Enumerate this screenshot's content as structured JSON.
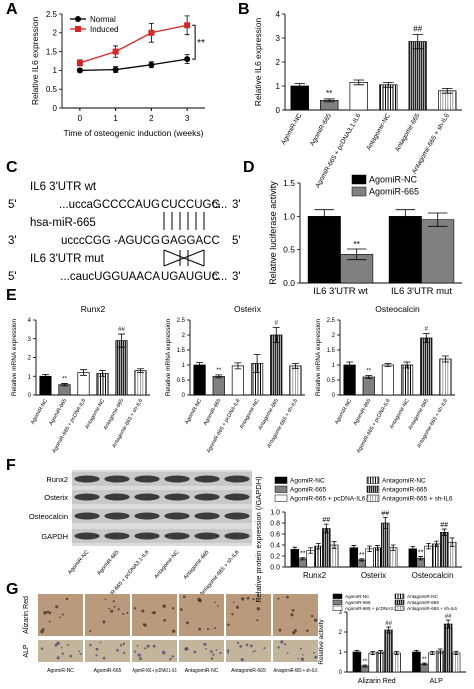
{
  "panel_labels": [
    "A",
    "B",
    "C",
    "D",
    "E",
    "F",
    "G"
  ],
  "chart_data": [
    {
      "type": "line",
      "x_label": "Time of osteogenic induction (weeks)",
      "y_label": "Relative IL6 expression",
      "x": [
        0,
        1,
        2,
        3
      ],
      "xlim": [
        -0.5,
        3.5
      ],
      "xticks": [
        0,
        1,
        2,
        3
      ],
      "ylim": [
        0,
        2.5
      ],
      "yticks": [
        0,
        0.5,
        1,
        1.5,
        2,
        2.5
      ],
      "legend": "top-left",
      "annotation": "**",
      "series": [
        {
          "name": "Normal",
          "color": "#000000",
          "marker": "circle",
          "values": [
            1.0,
            1.02,
            1.15,
            1.3
          ],
          "errors": [
            0.05,
            0.08,
            0.08,
            0.12
          ]
        },
        {
          "name": "Induced",
          "color": "#d62728",
          "marker": "square",
          "values": [
            1.2,
            1.5,
            2.0,
            2.2
          ],
          "errors": [
            0.08,
            0.15,
            0.25,
            0.25
          ]
        }
      ]
    },
    {
      "type": "bar",
      "y_label": "Relative IL6 expression",
      "categories": [
        "AgomiR-NC",
        "AgomiR-665",
        "AgomiR-665 + pcDNA3.1-IL6",
        "Antagomir-NC",
        "Antagomir-665",
        "Antagomir-665 + sh-IL6"
      ],
      "values": [
        1.0,
        0.4,
        1.15,
        1.05,
        2.85,
        0.8
      ],
      "errors": [
        0.1,
        0.06,
        0.1,
        0.1,
        0.3,
        0.1
      ],
      "significance": [
        null,
        "**",
        null,
        null,
        "##",
        null
      ],
      "fills": [
        "#000000",
        "#808080",
        "#ffffff",
        "stripes",
        "dense-stripes",
        "light-stripes"
      ],
      "ylim": [
        0,
        4
      ],
      "yticks": [
        0,
        1,
        2,
        3,
        4
      ]
    },
    {
      "type": "grouped_bar",
      "y_label": "Relative luciferase activity",
      "categories": [
        "IL6 3'UTR wt",
        "IL6 3'UTR mut"
      ],
      "legend": "top-right",
      "ylim": [
        0,
        1.5
      ],
      "yticks": [
        {
          "value": 0,
          "label": "0.0"
        },
        0.5,
        {
          "value": 1,
          "label": "1.0"
        },
        1.5
      ],
      "series": [
        {
          "name": "AgomiR-NC",
          "color": "#000000",
          "values": [
            1.0,
            1.0
          ],
          "errors": [
            0.1,
            0.1
          ],
          "significance": [
            null,
            null
          ]
        },
        {
          "name": "AgomiR-665",
          "color": "#808080",
          "values": [
            0.43,
            0.95
          ],
          "errors": [
            0.08,
            0.1
          ],
          "significance": [
            "**",
            null
          ]
        }
      ]
    },
    {
      "type": "bar",
      "title": "Runx2",
      "y_label": "Relative mRNA expression",
      "categories": [
        "AgomiR-NC",
        "AgomiR-665",
        "AgomiR-665 + pcDNA-IL6",
        "Antagomir-NC",
        "Antagomir-665",
        "Antagomir-665 + sh-IL6"
      ],
      "values": [
        1.0,
        0.55,
        1.2,
        1.15,
        2.9,
        1.3
      ],
      "errors": [
        0.1,
        0.06,
        0.15,
        0.15,
        0.35,
        0.1
      ],
      "significance": [
        null,
        "**",
        null,
        null,
        "##",
        null
      ],
      "fills": [
        "#000000",
        "#808080",
        "#ffffff",
        "stripes",
        "dense-stripes",
        "light-stripes"
      ],
      "ylim": [
        0,
        4
      ],
      "yticks": [
        0,
        1,
        2,
        3,
        4
      ]
    },
    {
      "type": "bar",
      "title": "Osterix",
      "y_label": "Relative mRNA expression",
      "categories": [
        "AgomiR-NC",
        "AgomiR-665",
        "AgomiR-665 + pcDNA-IL6",
        "Antagomir-NC",
        "Antagomir-665",
        "Antagomir-665 + sh-IL6"
      ],
      "values": [
        1.0,
        0.62,
        0.97,
        1.05,
        2.0,
        0.97
      ],
      "errors": [
        0.08,
        0.05,
        0.1,
        0.3,
        0.25,
        0.08
      ],
      "significance": [
        null,
        "**",
        null,
        null,
        "#",
        null
      ],
      "fills": [
        "#000000",
        "#808080",
        "#ffffff",
        "stripes",
        "dense-stripes",
        "light-stripes"
      ],
      "ylim": [
        0,
        2.5
      ],
      "yticks": [
        0,
        0.5,
        1,
        1.5,
        2,
        2.5
      ]
    },
    {
      "type": "bar",
      "title": "Osteocalcin",
      "y_label": "Relative mRNA expression",
      "categories": [
        "AgomiR-NC",
        "AgomiR-665",
        "AgomiR-665 + pcDNA-IL6",
        "Antagomir-NC",
        "Antagomir-665",
        "Antagomir-665 + sh-IL6"
      ],
      "values": [
        1.0,
        0.6,
        1.0,
        1.0,
        1.9,
        1.2
      ],
      "errors": [
        0.1,
        0.05,
        0.05,
        0.1,
        0.15,
        0.1
      ],
      "significance": [
        null,
        "**",
        null,
        null,
        "#",
        null
      ],
      "fills": [
        "#000000",
        "#808080",
        "#ffffff",
        "stripes",
        "dense-stripes",
        "light-stripes"
      ],
      "ylim": [
        0,
        2.5
      ],
      "yticks": [
        0,
        0.5,
        1,
        1.5,
        2,
        2.5
      ]
    },
    {
      "type": "grouped_bar",
      "y_label": "Relative protein expression (/GAPDH)",
      "categories": [
        "Runx2",
        "Osterix",
        "Osteocalcin"
      ],
      "legend": "above",
      "ylim": [
        0,
        1.0
      ],
      "yticks": [
        {
          "value": 0,
          "label": "0.0"
        },
        0.2,
        0.4,
        0.6,
        0.8,
        {
          "value": 1,
          "label": "1.0"
        }
      ],
      "series": [
        {
          "name": "AgomiR-NC",
          "color": "#000000",
          "values": [
            0.32,
            0.35,
            0.33
          ],
          "errors": [
            0.04,
            0.04,
            0.04
          ],
          "significance": [
            null,
            null,
            null
          ]
        },
        {
          "name": "AgomiR-665",
          "color": "#808080",
          "values": [
            0.15,
            0.13,
            0.16
          ],
          "errors": [
            0.02,
            0.02,
            0.03
          ],
          "significance": [
            "**",
            "**",
            "**"
          ]
        },
        {
          "name": "AgomiR-665 + pcDNA-IL6",
          "color": "#ffffff",
          "values": [
            0.3,
            0.33,
            0.38
          ],
          "errors": [
            0.05,
            0.05,
            0.05
          ],
          "significance": [
            null,
            null,
            null
          ]
        },
        {
          "name": "AntagomiR-NC",
          "color": "stripes",
          "values": [
            0.38,
            0.35,
            0.42
          ],
          "errors": [
            0.05,
            0.04,
            0.05
          ],
          "significance": [
            null,
            null,
            null
          ]
        },
        {
          "name": "AntagomiR-665",
          "color": "dense-stripes",
          "values": [
            0.7,
            0.8,
            0.63
          ],
          "errors": [
            0.08,
            0.1,
            0.06
          ],
          "significance": [
            "##",
            "##",
            "##"
          ]
        },
        {
          "name": "AntagomiR-665 + sh-IL6",
          "color": "light-stripes",
          "values": [
            0.4,
            0.35,
            0.45
          ],
          "errors": [
            0.06,
            0.05,
            0.08
          ],
          "significance": [
            null,
            null,
            null
          ]
        }
      ]
    },
    {
      "type": "grouped_bar",
      "y_label": "Relative activity",
      "categories": [
        "Alizarin Red",
        "ALP"
      ],
      "legend": "above",
      "ylim": [
        0,
        3
      ],
      "yticks": [
        0,
        1,
        2,
        3
      ],
      "series": [
        {
          "name": "AgomiR-NC",
          "color": "#000000",
          "values": [
            1.0,
            1.0
          ],
          "errors": [
            0.08,
            0.08
          ],
          "significance": [
            null,
            null
          ]
        },
        {
          "name": "AgomiR-665",
          "color": "#808080",
          "values": [
            0.3,
            0.4
          ],
          "errors": [
            0.05,
            0.05
          ],
          "significance": [
            "**",
            "**"
          ]
        },
        {
          "name": "AgomiR-665 + pcDNA3.1-IL6",
          "color": "#ffffff",
          "values": [
            0.95,
            0.95
          ],
          "errors": [
            0.08,
            0.08
          ],
          "significance": [
            null,
            null
          ]
        },
        {
          "name": "AntagomiR-NC",
          "color": "stripes",
          "values": [
            1.0,
            1.05
          ],
          "errors": [
            0.08,
            0.1
          ],
          "significance": [
            null,
            null
          ]
        },
        {
          "name": "AntagomiR-665",
          "color": "dense-stripes",
          "values": [
            2.1,
            2.4
          ],
          "errors": [
            0.15,
            0.2
          ],
          "significance": [
            "##",
            "##"
          ]
        },
        {
          "name": "AntagomiR-665 + sh-IL6",
          "color": "light-stripes",
          "values": [
            0.95,
            0.95
          ],
          "errors": [
            0.08,
            0.08
          ],
          "significance": [
            null,
            null
          ]
        }
      ]
    }
  ],
  "sequence_panel": {
    "wt_label": "IL6 3'UTR wt",
    "wt": [
      "5'",
      "...uccaGCCCCAUG",
      "CUCCUGG",
      "c...",
      "3'"
    ],
    "mirna_label": "hsa-miR-665",
    "mirna": [
      "3'",
      "ucccCGG -AGUCG",
      "GAGGACC",
      "5'"
    ],
    "mut_label": "IL6 3'UTR mut",
    "mut": [
      "5'",
      "...caucUGGUAACA",
      "UGAUGUC",
      "c...",
      "3'"
    ]
  },
  "blot": {
    "rows": [
      "Runx2",
      "Osterix",
      "Osteocalcin",
      "GAPDH"
    ],
    "lanes": [
      "AgomiR-NC",
      "AgomiR-665",
      "AgomiR-665 + pcDNA3.1-IL6",
      "Antagomir-NC",
      "Antagomir-665",
      "Antagomir-665 + sh-IL6"
    ]
  },
  "micrographs": {
    "rows": [
      "Alizarin Red",
      "ALP"
    ],
    "columns": [
      "AgomiR-NC",
      "AgomiR-665",
      "AgomiR-665 + pcDNA3.1-IL6",
      "AntagomiR-NC",
      "AntagomiR-665",
      "AntagomiR-665 + sh-IL6"
    ]
  }
}
